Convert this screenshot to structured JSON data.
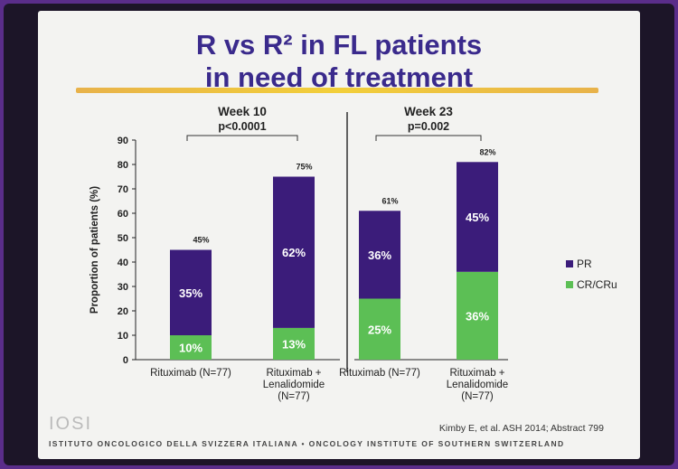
{
  "slide": {
    "title_line1": "R vs R² in FL patients",
    "title_line2": "in need of treatment",
    "source": "Kimby E, et al. ASH 2014; Abstract 799",
    "logo_text": "IOSI",
    "footer_text": "ISTITUTO ONCOLOGICO DELLA SVIZZERA ITALIANA  •  ONCOLOGY INSTITUTE OF SOUTHERN SWITZERLAND"
  },
  "colors": {
    "pr": "#3b1c7a",
    "cr": "#5cbf55",
    "axis": "#222222",
    "text": "#222222"
  },
  "chart_data": {
    "type": "bar",
    "stacked": true,
    "ylabel": "Proportion of patients (%)",
    "ylim": [
      0,
      90
    ],
    "yticks": [
      0,
      10,
      20,
      30,
      40,
      50,
      60,
      70,
      80,
      90
    ],
    "legend": [
      "PR",
      "CR/CRu"
    ],
    "legend_position": "right",
    "groups": [
      {
        "title": "Week 10",
        "pvalue": "p<0.0001",
        "bars": [
          {
            "label_lines": [
              "Rituximab (N=77)"
            ],
            "cr": 10,
            "pr": 35,
            "total": 45,
            "cr_label": "10%",
            "pr_label": "35%",
            "total_label": "45%"
          },
          {
            "label_lines": [
              "Rituximab +",
              "Lenalidomide",
              "(N=77)"
            ],
            "cr": 13,
            "pr": 62,
            "total": 75,
            "cr_label": "13%",
            "pr_label": "62%",
            "total_label": "75%"
          }
        ]
      },
      {
        "title": "Week 23",
        "pvalue": "p=0.002",
        "bars": [
          {
            "label_lines": [
              "Rituximab (N=77)"
            ],
            "cr": 25,
            "pr": 36,
            "total": 61,
            "cr_label": "25%",
            "pr_label": "36%",
            "total_label": "61%"
          },
          {
            "label_lines": [
              "Rituximab +",
              "Lenalidomide",
              "(N=77)"
            ],
            "cr": 36,
            "pr": 45,
            "total": 82,
            "cr_label": "36%",
            "pr_label": "45%",
            "total_label": "82%"
          }
        ]
      }
    ]
  }
}
